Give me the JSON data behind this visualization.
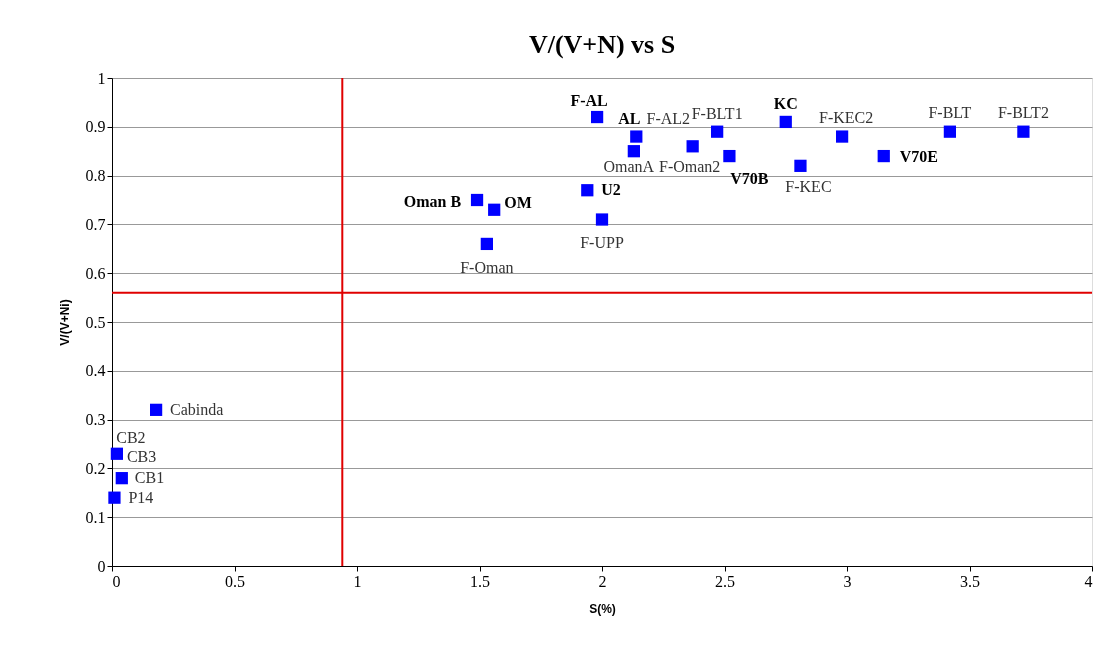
{
  "chart_data": {
    "type": "scatter",
    "title": "V/(V+N) vs S",
    "xlabel": "S(%)",
    "ylabel": "V/(V+Ni)",
    "x": [
      1.98,
      2.14,
      2.13,
      2.37,
      2.47,
      2.52,
      2.75,
      2.98,
      2.81,
      3.15,
      3.42,
      3.72,
      1.49,
      1.56,
      1.94,
      2.0,
      1.53,
      0.18,
      0.02,
      0.04,
      0.01
    ],
    "series": [
      {
        "color": "#0000ff",
        "values": [
          0.92,
          0.88,
          0.85,
          0.86,
          0.89,
          0.84,
          0.91,
          0.88,
          0.82,
          0.84,
          0.89,
          0.89,
          0.75,
          0.73,
          0.77,
          0.71,
          0.66,
          0.32,
          0.23,
          0.18,
          0.14
        ]
      }
    ],
    "annotations": [
      {
        "text": "F-AL",
        "x": 1.98,
        "y": 0.92
      },
      {
        "text": "AL",
        "x": 2.14,
        "y": 0.88
      },
      {
        "text": "F-AL2",
        "x": 2.14,
        "y": 0.88
      },
      {
        "text": "OmanA",
        "x": 2.13,
        "y": 0.85
      },
      {
        "text": "F-Oman2",
        "x": 2.37,
        "y": 0.86
      },
      {
        "text": "F-BLT1",
        "x": 2.47,
        "y": 0.89
      },
      {
        "text": "V70B",
        "x": 2.52,
        "y": 0.84
      },
      {
        "text": "KC",
        "x": 2.75,
        "y": 0.91
      },
      {
        "text": "F-KEC2",
        "x": 2.98,
        "y": 0.88
      },
      {
        "text": "F-KEC",
        "x": 2.81,
        "y": 0.82
      },
      {
        "text": "V70E",
        "x": 3.15,
        "y": 0.84
      },
      {
        "text": "F-BLT",
        "x": 3.42,
        "y": 0.89
      },
      {
        "text": "F-BLT2",
        "x": 3.72,
        "y": 0.89
      },
      {
        "text": "Oman B",
        "x": 1.49,
        "y": 0.75
      },
      {
        "text": "OM",
        "x": 1.56,
        "y": 0.73
      },
      {
        "text": "U2",
        "x": 1.94,
        "y": 0.77
      },
      {
        "text": "F-UPP",
        "x": 2.0,
        "y": 0.71
      },
      {
        "text": "F-Oman",
        "x": 1.53,
        "y": 0.66
      },
      {
        "text": "Cabinda",
        "x": 0.18,
        "y": 0.32
      },
      {
        "text": "CB2",
        "x": 0.02,
        "y": 0.23
      },
      {
        "text": "CB3",
        "x": 0.02,
        "y": 0.23
      },
      {
        "text": "CB1",
        "x": 0.04,
        "y": 0.18
      },
      {
        "text": "P14",
        "x": 0.01,
        "y": 0.14
      }
    ],
    "xlim": [
      0,
      4
    ],
    "xticks": [
      0,
      0.5,
      1,
      1.5,
      2,
      2.5,
      3,
      3.5,
      4
    ],
    "ylim": [
      0,
      1
    ],
    "yticks": [
      0,
      0.1,
      0.2,
      0.3,
      0.4,
      0.5,
      0.6,
      0.7,
      0.8,
      0.9,
      1
    ],
    "grid": "y",
    "marker": "square",
    "ref_lines": [
      {
        "axis": "x",
        "value": 0.94,
        "color": "#e00000"
      },
      {
        "axis": "y",
        "value": 0.56,
        "color": "#e00000"
      }
    ]
  }
}
